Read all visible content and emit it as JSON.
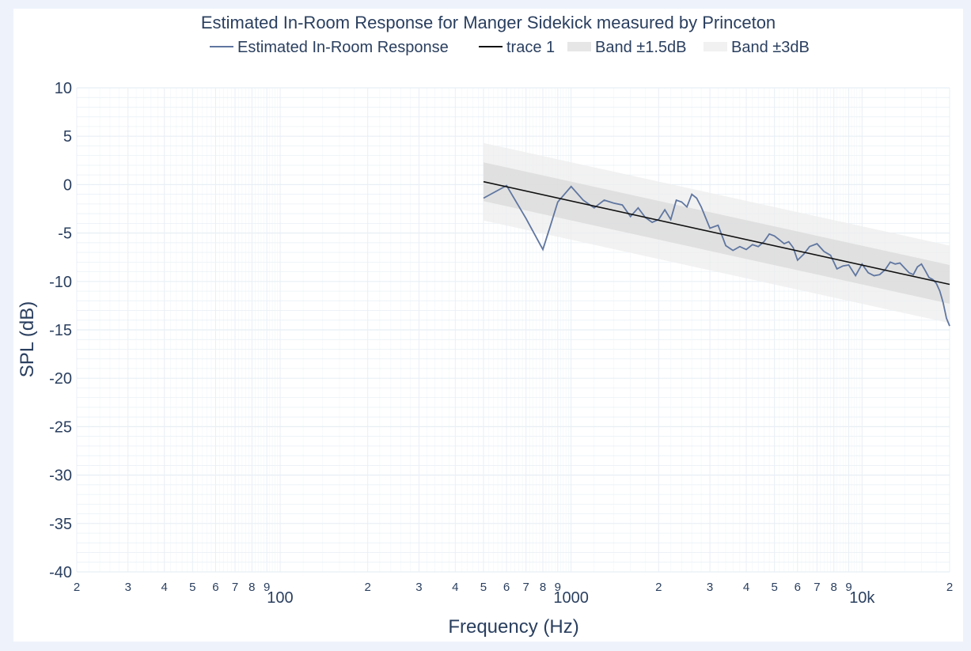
{
  "chart_data": {
    "type": "line",
    "title": "Estimated In-Room Response for Manger Sidekick measured by Princeton",
    "xlabel": "Frequency (Hz)",
    "ylabel": "SPL (dB)",
    "x_scale": "log",
    "xlim": [
      20,
      20000
    ],
    "ylim": [
      -40,
      10
    ],
    "grid": true,
    "legend_position": "top",
    "y_ticks": [
      "10",
      "5",
      "0",
      "-5",
      "-10",
      "-15",
      "-20",
      "-25",
      "-30",
      "-35",
      "-40"
    ],
    "x_ticks": [
      {
        "value": 20,
        "label": "2",
        "major": false
      },
      {
        "value": 30,
        "label": "3",
        "major": false
      },
      {
        "value": 40,
        "label": "4",
        "major": false
      },
      {
        "value": 50,
        "label": "5",
        "major": false
      },
      {
        "value": 60,
        "label": "6",
        "major": false
      },
      {
        "value": 70,
        "label": "7",
        "major": false
      },
      {
        "value": 80,
        "label": "8",
        "major": false
      },
      {
        "value": 90,
        "label": "9",
        "major": false
      },
      {
        "value": 100,
        "label": "100",
        "major": true
      },
      {
        "value": 200,
        "label": "2",
        "major": false
      },
      {
        "value": 300,
        "label": "3",
        "major": false
      },
      {
        "value": 400,
        "label": "4",
        "major": false
      },
      {
        "value": 500,
        "label": "5",
        "major": false
      },
      {
        "value": 600,
        "label": "6",
        "major": false
      },
      {
        "value": 700,
        "label": "7",
        "major": false
      },
      {
        "value": 800,
        "label": "8",
        "major": false
      },
      {
        "value": 900,
        "label": "9",
        "major": false
      },
      {
        "value": 1000,
        "label": "1000",
        "major": true
      },
      {
        "value": 2000,
        "label": "2",
        "major": false
      },
      {
        "value": 3000,
        "label": "3",
        "major": false
      },
      {
        "value": 4000,
        "label": "4",
        "major": false
      },
      {
        "value": 5000,
        "label": "5",
        "major": false
      },
      {
        "value": 6000,
        "label": "6",
        "major": false
      },
      {
        "value": 7000,
        "label": "7",
        "major": false
      },
      {
        "value": 8000,
        "label": "8",
        "major": false
      },
      {
        "value": 9000,
        "label": "9",
        "major": false
      },
      {
        "value": 10000,
        "label": "10k",
        "major": true
      },
      {
        "value": 20000,
        "label": "2",
        "major": false
      }
    ],
    "legend": [
      {
        "name": "Estimated In-Room Response",
        "kind": "line",
        "color": "#5f76a0"
      },
      {
        "name": "trace 1",
        "kind": "line",
        "color": "#111111"
      },
      {
        "name": "Band ±1.5dB",
        "kind": "band",
        "color": "#e6e6e6"
      },
      {
        "name": "Band ±3dB",
        "kind": "band",
        "color": "#f1f1f1"
      }
    ],
    "colors": {
      "response": "#5f76a0",
      "trend": "#111111",
      "band_inner": "#d9d9d9",
      "band_outer": "#eeeeee",
      "grid": "#e8eff5"
    },
    "series": [
      {
        "name": "Estimated In-Room Response",
        "x": [
          500,
          600,
          700,
          800,
          850,
          900,
          1000,
          1100,
          1200,
          1300,
          1400,
          1500,
          1600,
          1700,
          1800,
          1900,
          2000,
          2100,
          2200,
          2300,
          2400,
          2500,
          2600,
          2700,
          2800,
          3000,
          3200,
          3400,
          3600,
          3800,
          4000,
          4200,
          4400,
          4600,
          4800,
          5000,
          5200,
          5400,
          5600,
          5800,
          6000,
          6300,
          6600,
          7000,
          7400,
          7800,
          8200,
          8600,
          9000,
          9500,
          10000,
          10500,
          11000,
          11500,
          12000,
          12500,
          13000,
          13500,
          14000,
          14500,
          15000,
          15500,
          16000,
          16500,
          17000,
          17500,
          18000,
          18500,
          19000,
          19500,
          20000
        ],
        "values": [
          -1.4,
          -0.1,
          -3.5,
          -6.7,
          -4.2,
          -1.8,
          -0.2,
          -1.6,
          -2.4,
          -1.6,
          -1.9,
          -2.1,
          -3.3,
          -2.4,
          -3.4,
          -3.9,
          -3.6,
          -2.6,
          -3.6,
          -1.6,
          -1.8,
          -2.3,
          -1.0,
          -1.4,
          -2.3,
          -4.5,
          -4.2,
          -6.3,
          -6.8,
          -6.4,
          -6.7,
          -6.2,
          -6.4,
          -5.9,
          -5.1,
          -5.3,
          -5.7,
          -6.1,
          -5.9,
          -6.5,
          -7.8,
          -7.2,
          -6.4,
          -6.1,
          -6.9,
          -7.3,
          -8.7,
          -8.4,
          -8.3,
          -9.4,
          -8.2,
          -9.1,
          -9.4,
          -9.3,
          -8.8,
          -8.0,
          -8.2,
          -8.1,
          -8.6,
          -9.1,
          -9.3,
          -8.5,
          -8.2,
          -8.9,
          -9.6,
          -9.8,
          -10.2,
          -11.0,
          -12.2,
          -13.8,
          -14.6
        ]
      },
      {
        "name": "trace 1",
        "x": [
          500,
          20000
        ],
        "values": [
          0.3,
          -10.3
        ]
      }
    ]
  }
}
